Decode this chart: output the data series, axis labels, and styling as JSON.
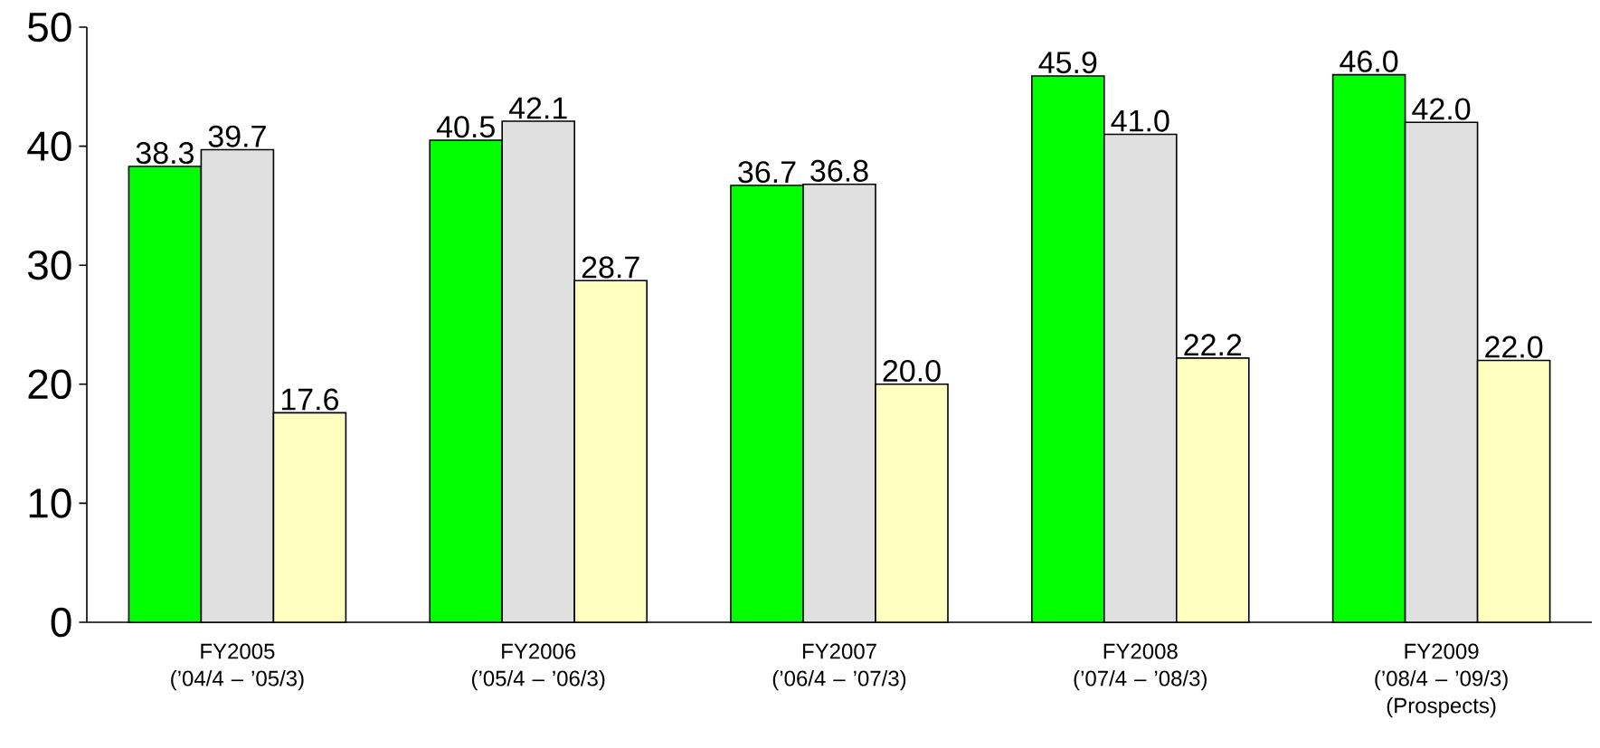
{
  "chart_data": {
    "type": "bar",
    "categories": [
      "FY2005 (’04/4 – ’05/3)",
      "FY2006 (’05/4 – ’06/3)",
      "FY2007 (’06/4 – ’07/3)",
      "FY2008 (’07/4 – ’08/3)",
      "FY2009 (’08/4 – ’09/3) (Prospects)"
    ],
    "series": [
      {
        "color": "#00ff00",
        "values": [
          38.3,
          40.5,
          36.7,
          45.9,
          46.0
        ],
        "value_labels": [
          "38.3",
          "40.5",
          "36.7",
          "45.9",
          "46.0"
        ]
      },
      {
        "color": "#e0e0e0",
        "values": [
          39.7,
          42.1,
          36.8,
          41.0,
          42.0
        ],
        "value_labels": [
          "39.7",
          "42.1",
          "36.8",
          "41.0",
          "42.0"
        ]
      },
      {
        "color": "#ffffc0",
        "values": [
          17.6,
          28.7,
          20.0,
          22.2,
          22.0
        ],
        "value_labels": [
          "17.6",
          "28.7",
          "20.0",
          "22.2",
          "22.0"
        ]
      }
    ],
    "ylim": [
      0,
      50
    ],
    "yticks": [
      0,
      10,
      20,
      30,
      40,
      50
    ],
    "grid": false
  }
}
